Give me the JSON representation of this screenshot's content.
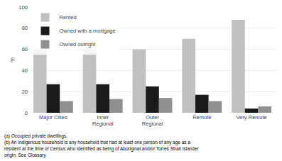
{
  "chart_data": {
    "type": "bar",
    "categories": [
      "Major Cities",
      "Inner\nRegional",
      "Outer\nRegional",
      "Remote",
      "Very Remote"
    ],
    "series": [
      {
        "name": "Rented",
        "color": "#c0c0c0",
        "values": [
          60,
          59,
          60,
          70,
          88
        ]
      },
      {
        "name": "Owned with a mortgage",
        "color": "#1a1a1a",
        "values": [
          27,
          27,
          25,
          17,
          4
        ]
      },
      {
        "name": "Owned outright",
        "color": "#909090",
        "values": [
          11,
          13,
          14,
          11,
          6
        ]
      }
    ],
    "ylabel": "%",
    "ylim": [
      0,
      100
    ],
    "yticks": [
      0,
      20,
      40,
      60,
      80,
      100
    ],
    "grid": true,
    "legend": "upper left",
    "annotations": [
      "(a) Occupied private dwellings.",
      "(b) An Indigenous household is any household that had at least one person of any age as a",
      "resident at the time of Census who identified as being of Aboriginal and/or Torres Strait Islander",
      "origin. See Glossary."
    ]
  }
}
